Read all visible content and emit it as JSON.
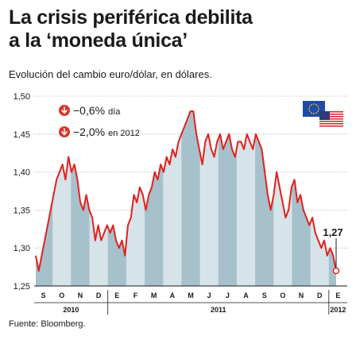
{
  "header": {
    "title_line1": "La crisis periférica debilita",
    "title_line2": "a la ‘moneda única’",
    "subtitle": "Evolución del cambio euro/dólar, en dólares."
  },
  "footer": {
    "source": "Fuente: Bloomberg."
  },
  "legend": {
    "items": [
      {
        "value": "−0,6%",
        "unit": "día"
      },
      {
        "value": "−2,0%",
        "unit": "en 2012"
      }
    ],
    "icons": [
      "eu-flag-icon",
      "us-flag-icon",
      "down-arrow-icon"
    ]
  },
  "colors": {
    "line": "#e2211c",
    "area_dark": "#a6c0cc",
    "area_light": "#d6e3e9",
    "arrow_circle": "#d9362b"
  },
  "chart_data": {
    "type": "line",
    "title": "La crisis periférica debilita a la ‘moneda única’",
    "subtitle": "Evolución del cambio euro/dólar, en dólares.",
    "ylim": [
      1.25,
      1.5
    ],
    "yticks": [
      "1,50",
      "1,45",
      "1,40",
      "1,35",
      "1,30",
      "1,25"
    ],
    "ytick_values": [
      1.5,
      1.45,
      1.4,
      1.35,
      1.3,
      1.25
    ],
    "grid": true,
    "months": [
      "S",
      "O",
      "N",
      "D",
      "E",
      "F",
      "M",
      "A",
      "M",
      "J",
      "J",
      "A",
      "S",
      "O",
      "N",
      "D",
      "E"
    ],
    "years": [
      "2010",
      "2011",
      "2012"
    ],
    "last_value_label": "1,27",
    "series": [
      {
        "values": [
          1.29,
          1.27,
          1.29,
          1.31,
          1.33,
          1.35,
          1.37,
          1.39,
          1.4,
          1.41,
          1.39,
          1.42,
          1.4,
          1.41,
          1.39,
          1.36,
          1.35,
          1.37,
          1.35,
          1.34,
          1.31,
          1.33,
          1.31,
          1.32,
          1.33,
          1.32,
          1.33,
          1.31,
          1.3,
          1.31,
          1.29,
          1.33,
          1.34,
          1.37,
          1.36,
          1.38,
          1.37,
          1.35,
          1.37,
          1.38,
          1.4,
          1.39,
          1.41,
          1.4,
          1.42,
          1.41,
          1.43,
          1.42,
          1.44,
          1.45,
          1.46,
          1.47,
          1.48,
          1.48,
          1.45,
          1.43,
          1.41,
          1.44,
          1.45,
          1.43,
          1.42,
          1.44,
          1.45,
          1.43,
          1.44,
          1.45,
          1.43,
          1.42,
          1.44,
          1.44,
          1.43,
          1.45,
          1.44,
          1.43,
          1.45,
          1.44,
          1.43,
          1.4,
          1.37,
          1.35,
          1.37,
          1.4,
          1.38,
          1.36,
          1.34,
          1.35,
          1.38,
          1.39,
          1.36,
          1.37,
          1.35,
          1.34,
          1.33,
          1.34,
          1.32,
          1.31,
          1.3,
          1.31,
          1.29,
          1.3,
          1.29,
          1.27
        ]
      }
    ]
  }
}
